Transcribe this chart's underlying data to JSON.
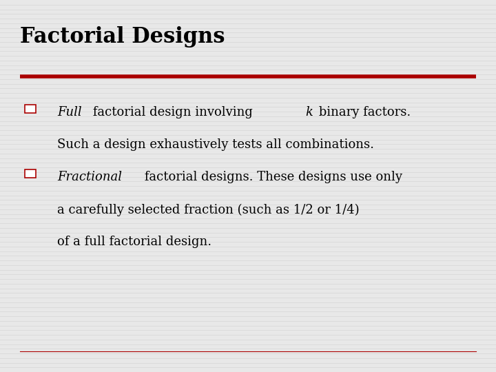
{
  "title": "Factorial Designs",
  "title_fontsize": 22,
  "background_color": "#e8e8e8",
  "stripe_color": "#d8d8d8",
  "red_line_color": "#aa0000",
  "text_color": "#000000",
  "text_fontsize": 13,
  "bullet_color": "#aa0000",
  "bullet1_line1_italic": "Full",
  "bullet1_line1_normal": " factorial design involving ",
  "bullet1_line1_italic2": "k",
  "bullet1_line1_normal2": " binary factors.",
  "bullet1_line2": "Such a design exhaustively tests all combinations.",
  "bullet2_line1_italic": "Fractional",
  "bullet2_line1_normal": " factorial designs. These designs use only",
  "bullet2_line2": "a carefully selected fraction (such as 1/2 or 1/4)",
  "bullet2_line3": "of a full factorial design."
}
